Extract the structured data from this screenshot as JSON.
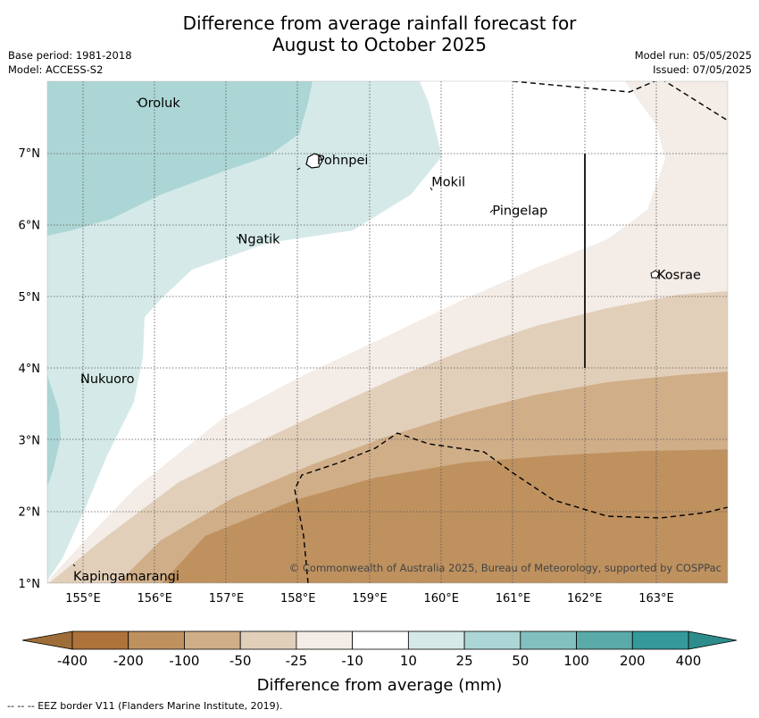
{
  "title_line1": "Difference from average rainfall forecast for",
  "title_line2": "August to October 2025",
  "base_period": "Base period: 1981-2018",
  "model": "Model: ACCESS-S2",
  "model_run": "Model run: 05/05/2025",
  "issued": "Issued: 07/05/2025",
  "places": [
    {
      "name": "Oroluk",
      "lon": 155.75,
      "lat": 7.7
    },
    {
      "name": "Pohnpei",
      "lon": 158.25,
      "lat": 6.9
    },
    {
      "name": "Mokil",
      "lon": 159.85,
      "lat": 6.6
    },
    {
      "name": "Pingelap",
      "lon": 160.7,
      "lat": 6.2
    },
    {
      "name": "Ngatik",
      "lon": 157.15,
      "lat": 5.8
    },
    {
      "name": "Kosrae",
      "lon": 163.0,
      "lat": 5.3
    },
    {
      "name": "Nukuoro",
      "lon": 154.95,
      "lat": 3.85
    },
    {
      "name": "Kapingamarangi",
      "lon": 154.85,
      "lat": 1.1
    }
  ],
  "lon_ticks": [
    "155°E",
    "156°E",
    "157°E",
    "158°E",
    "159°E",
    "160°E",
    "161°E",
    "162°E",
    "163°E"
  ],
  "lat_ticks": [
    "1°N",
    "2°N",
    "3°N",
    "4°N",
    "5°N",
    "6°N",
    "7°N"
  ],
  "copyright": "© Commonwealth of Australia 2025, Bureau of Meteorology, supported by COSPPac",
  "colorbar": {
    "labels": [
      "-400",
      "-200",
      "-100",
      "-50",
      "-25",
      "-10",
      "10",
      "25",
      "50",
      "100",
      "200",
      "400"
    ],
    "colors": [
      "#ad733a",
      "#be915f",
      "#d0ae88",
      "#e2cfba",
      "#f4ece6",
      "#ffffff",
      "#d5eae8",
      "#acd6d5",
      "#82c0bf",
      "#5aaaa8",
      "#35999a"
    ],
    "under_color": "#9e6d38",
    "over_color": "#2e8c8c",
    "title": "Difference from average (mm)"
  },
  "legend_note": "--  --  -- EEZ border V11 (Flanders Marine Institute, 2019)."
}
